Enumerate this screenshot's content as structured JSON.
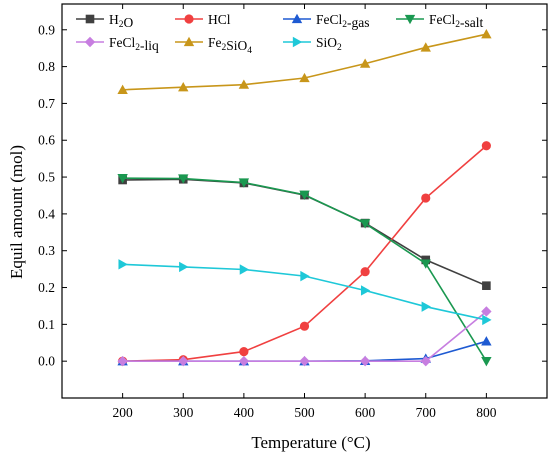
{
  "chart_data": {
    "type": "line",
    "xlabel": "Temperature (°C)",
    "ylabel": "Equil amount (mol)",
    "x": [
      200,
      300,
      400,
      500,
      600,
      700,
      800
    ],
    "xticks": [
      "200",
      "300",
      "400",
      "500",
      "600",
      "700",
      "800"
    ],
    "xlim": [
      100,
      900
    ],
    "yticks": [
      "0.0",
      "0.1",
      "0.2",
      "0.3",
      "0.4",
      "0.5",
      "0.6",
      "0.7",
      "0.8",
      "0.9"
    ],
    "ylim": [
      -0.1,
      0.97
    ],
    "grid": false,
    "legend": "top, inside plot, 4 columns",
    "series": [
      {
        "name": "H2O",
        "color": "#404040",
        "marker": "square",
        "values": [
          0.492,
          0.494,
          0.484,
          0.451,
          0.375,
          0.275,
          0.205
        ]
      },
      {
        "name": "HCl",
        "color": "#f04040",
        "marker": "circle",
        "values": [
          0.0,
          0.004,
          0.026,
          0.095,
          0.243,
          0.443,
          0.585
        ]
      },
      {
        "name": "FeCl2-gas",
        "color": "#1e5ad2",
        "marker": "triangle-up",
        "values": [
          0.0,
          0.0,
          0.0,
          0.0,
          0.001,
          0.007,
          0.054
        ]
      },
      {
        "name": "FeCl2-salt",
        "color": "#1a9850",
        "marker": "triangle-down",
        "values": [
          0.497,
          0.496,
          0.485,
          0.452,
          0.374,
          0.265,
          0.0
        ]
      },
      {
        "name": "FeCl2-liq",
        "color": "#c77ee0",
        "marker": "diamond",
        "values": [
          0.0,
          0.0,
          0.0,
          0.0,
          0.0,
          0.0,
          0.135
        ]
      },
      {
        "name": "Fe2SiO4",
        "color": "#c8961a",
        "marker": "triangle-up",
        "values": [
          0.737,
          0.744,
          0.751,
          0.769,
          0.808,
          0.852,
          0.888
        ]
      },
      {
        "name": "SiO2",
        "color": "#1ec8d8",
        "marker": "triangle-right",
        "values": [
          0.263,
          0.256,
          0.249,
          0.231,
          0.192,
          0.148,
          0.112
        ]
      }
    ]
  }
}
